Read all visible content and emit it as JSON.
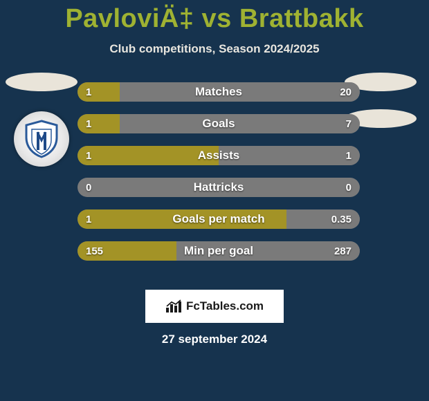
{
  "background_color": "#16334e",
  "title": "PavloviÄ‡ vs Brattbakk",
  "title_color": "#9fb232",
  "subtitle": "Club competitions, Season 2024/2025",
  "subtitle_color": "#e8e6df",
  "ellipse_color": "#e9e4d9",
  "left_color": "#a39326",
  "right_color": "#7a7a7a",
  "bar_bg": "#7a7a7a",
  "rows": [
    {
      "label": "Matches",
      "left": "1",
      "right": "20",
      "left_pct": 15,
      "right_pct": 85
    },
    {
      "label": "Goals",
      "left": "1",
      "right": "7",
      "left_pct": 15,
      "right_pct": 85
    },
    {
      "label": "Assists",
      "left": "1",
      "right": "1",
      "left_pct": 50,
      "right_pct": 50
    },
    {
      "label": "Hattricks",
      "left": "0",
      "right": "0",
      "left_pct": 0,
      "right_pct": 0
    },
    {
      "label": "Goals per match",
      "left": "1",
      "right": "0.35",
      "left_pct": 74,
      "right_pct": 26
    },
    {
      "label": "Min per goal",
      "left": "155",
      "right": "287",
      "left_pct": 35,
      "right_pct": 65
    }
  ],
  "brand": {
    "text": "FcTables.com",
    "bg": "#ffffff",
    "text_color": "#1a1a1a"
  },
  "date": "27 september 2024",
  "badge": {
    "outer_ring": "#2a5a9a",
    "white": "#ffffff",
    "stripe": "#1f4a88"
  }
}
